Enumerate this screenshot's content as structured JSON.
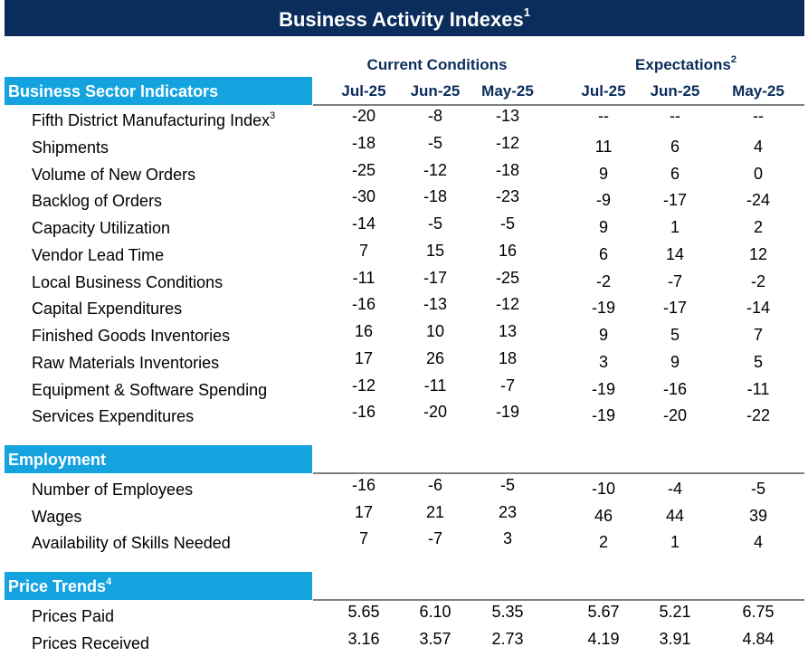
{
  "title": {
    "text": "Business Activity Indexes",
    "note": "1"
  },
  "groups": {
    "current": {
      "text": "Current Conditions",
      "note": ""
    },
    "expectations": {
      "text": "Expectations",
      "note": "2"
    }
  },
  "columns": [
    "Jul-25",
    "Jun-25",
    "May-25",
    "Jul-25",
    "Jun-25",
    "May-25"
  ],
  "sections": [
    {
      "title": "Business Sector Indicators",
      "note": "",
      "rows": [
        {
          "label": "Fifth District Manufacturing Index",
          "note": "3",
          "values": [
            "-20",
            "-8",
            "-13",
            "--",
            "--",
            "--"
          ]
        },
        {
          "label": "Shipments",
          "note": "",
          "values": [
            "-18",
            "-5",
            "-12",
            "11",
            "6",
            "4"
          ]
        },
        {
          "label": "Volume of New Orders",
          "note": "",
          "values": [
            "-25",
            "-12",
            "-18",
            "9",
            "6",
            "0"
          ]
        },
        {
          "label": "Backlog of Orders",
          "note": "",
          "values": [
            "-30",
            "-18",
            "-23",
            "-9",
            "-17",
            "-24"
          ]
        },
        {
          "label": "Capacity Utilization",
          "note": "",
          "values": [
            "-14",
            "-5",
            "-5",
            "9",
            "1",
            "2"
          ]
        },
        {
          "label": "Vendor Lead Time",
          "note": "",
          "values": [
            "7",
            "15",
            "16",
            "6",
            "14",
            "12"
          ]
        },
        {
          "label": "Local Business Conditions",
          "note": "",
          "values": [
            "-11",
            "-17",
            "-25",
            "-2",
            "-7",
            "-2"
          ]
        },
        {
          "label": "Capital Expenditures",
          "note": "",
          "values": [
            "-16",
            "-13",
            "-12",
            "-19",
            "-17",
            "-14"
          ]
        },
        {
          "label": "Finished Goods Inventories",
          "note": "",
          "values": [
            "16",
            "10",
            "13",
            "9",
            "5",
            "7"
          ]
        },
        {
          "label": "Raw Materials Inventories",
          "note": "",
          "values": [
            "17",
            "26",
            "18",
            "3",
            "9",
            "5"
          ]
        },
        {
          "label": "Equipment & Software Spending",
          "note": "",
          "values": [
            "-12",
            "-11",
            "-7",
            "-19",
            "-16",
            "-11"
          ]
        },
        {
          "label": "Services Expenditures",
          "note": "",
          "values": [
            "-16",
            "-20",
            "-19",
            "-19",
            "-20",
            "-22"
          ]
        }
      ]
    },
    {
      "title": "Employment",
      "note": "",
      "rows": [
        {
          "label": "Number of Employees",
          "note": "",
          "values": [
            "-16",
            "-6",
            "-5",
            "-10",
            "-4",
            "-5"
          ]
        },
        {
          "label": "Wages",
          "note": "",
          "values": [
            "17",
            "21",
            "23",
            "46",
            "44",
            "39"
          ]
        },
        {
          "label": "Availability of Skills Needed",
          "note": "",
          "values": [
            "7",
            "-7",
            "3",
            "2",
            "1",
            "4"
          ]
        }
      ]
    },
    {
      "title": "Price Trends",
      "note": "4",
      "rows": [
        {
          "label": "Prices Paid",
          "note": "",
          "values": [
            "5.65",
            "6.10",
            "5.35",
            "5.67",
            "5.21",
            "6.75"
          ]
        },
        {
          "label": "Prices Received",
          "note": "",
          "values": [
            "3.16",
            "3.57",
            "2.73",
            "4.19",
            "3.91",
            "4.84"
          ]
        }
      ]
    }
  ],
  "colors": {
    "title_bg": "#0b2d5b",
    "section_bg": "#15a3e0",
    "header_text": "#0b2d5b",
    "rule": "#7f7f7f"
  }
}
